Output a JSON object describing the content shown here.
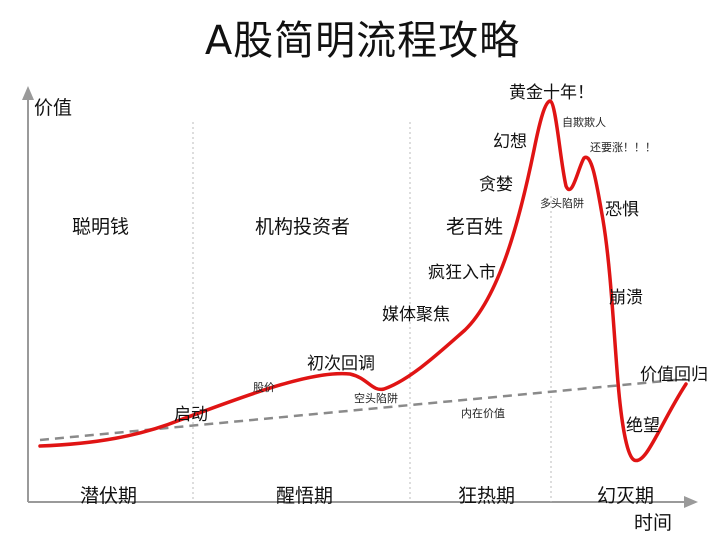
{
  "title": "A股简明流程攻略",
  "axes": {
    "y_label": "价值",
    "x_label": "时间"
  },
  "participants": [
    "聪明钱",
    "机构投资者",
    "老百姓"
  ],
  "phases": [
    "潜伏期",
    "醒悟期",
    "狂热期",
    "幻灭期"
  ],
  "stages": {
    "start": "启动",
    "first_pullback": "初次回调",
    "media_focus": "媒体聚焦",
    "frenzy": "疯狂入市",
    "greed": "贪婪",
    "illusion": "幻想",
    "golden_decade": "黄金十年！",
    "fear": "恐惧",
    "collapse": "崩溃",
    "despair": "绝望",
    "value_return": "价值回归"
  },
  "notes": {
    "stock_price": "股价",
    "bear_trap": "空头陷阱",
    "intrinsic_value": "内在价值",
    "self_deception": "自欺欺人",
    "bull_trap": "多头陷阱",
    "still_rising": "还要涨！！！"
  },
  "colors": {
    "price_curve": "#e01414",
    "value_line": "#8a8a8a",
    "axis": "#9a9a9a",
    "divider": "#bbbbbb"
  }
}
